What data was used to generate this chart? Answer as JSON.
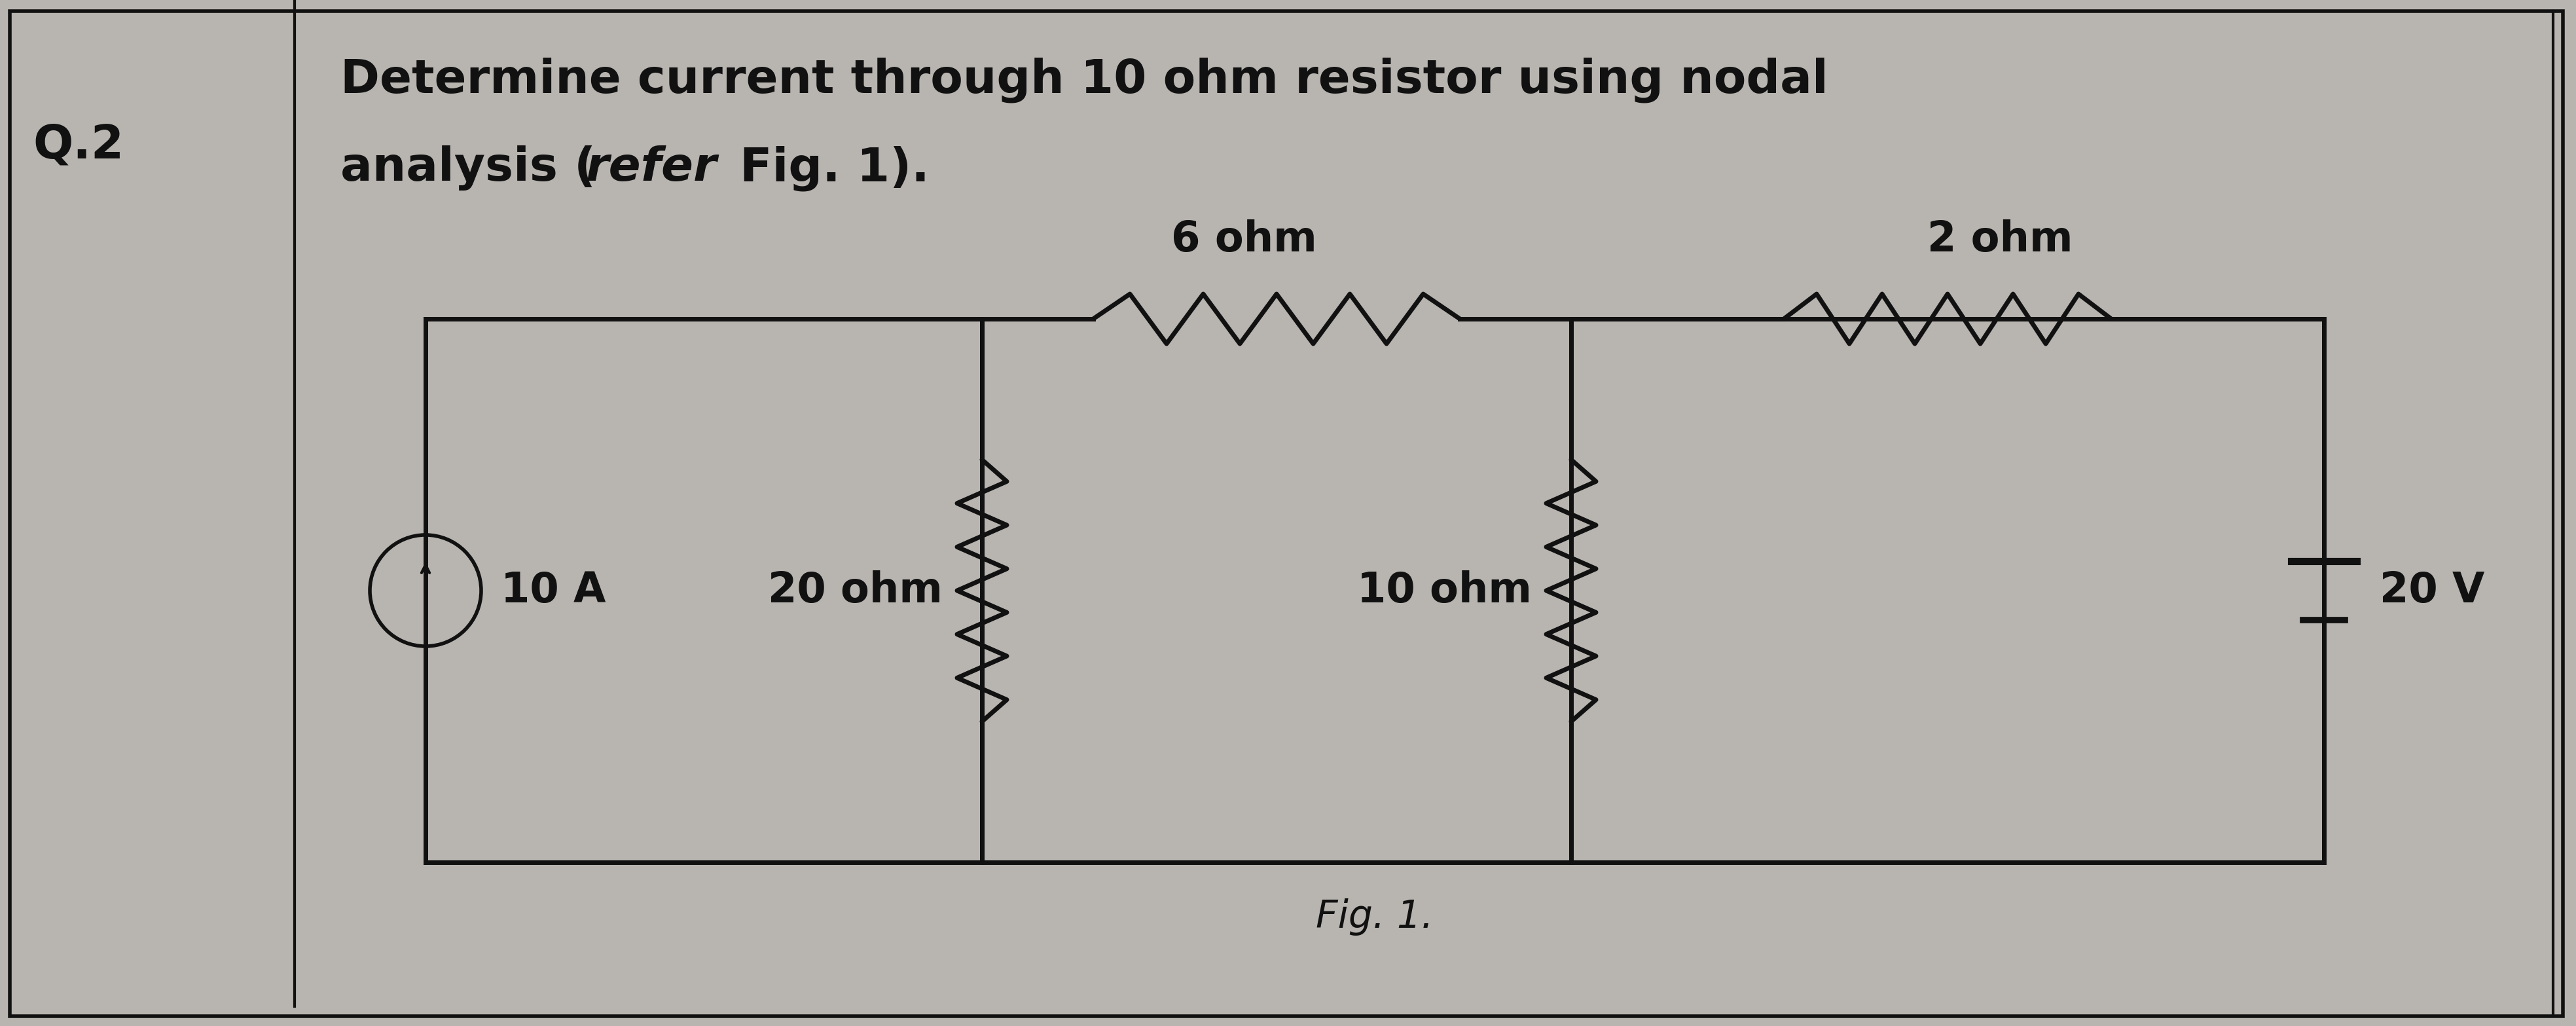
{
  "background_color": "#b8b4b0",
  "panel_color": "#c8c5c1",
  "title_label": "Q.2",
  "title_text_line1": "Determine current through 10 ohm resistor using nodal",
  "title_text_line2a": "analysis (",
  "title_text_italic": "refer",
  "title_text_line2b": " Fig. 1).",
  "fig_label": "Fig. 1.",
  "label_6ohm": "6 ohm",
  "label_2ohm": "2 ohm",
  "label_20ohm": "20 ohm",
  "label_10ohm": "10 ohm",
  "label_20V": "20 V",
  "label_10A": "10 A",
  "text_color": "#111111",
  "line_color": "#111111",
  "line_width": 5.0,
  "font_size_title": 52,
  "font_size_labels": 46,
  "font_size_caption": 42
}
